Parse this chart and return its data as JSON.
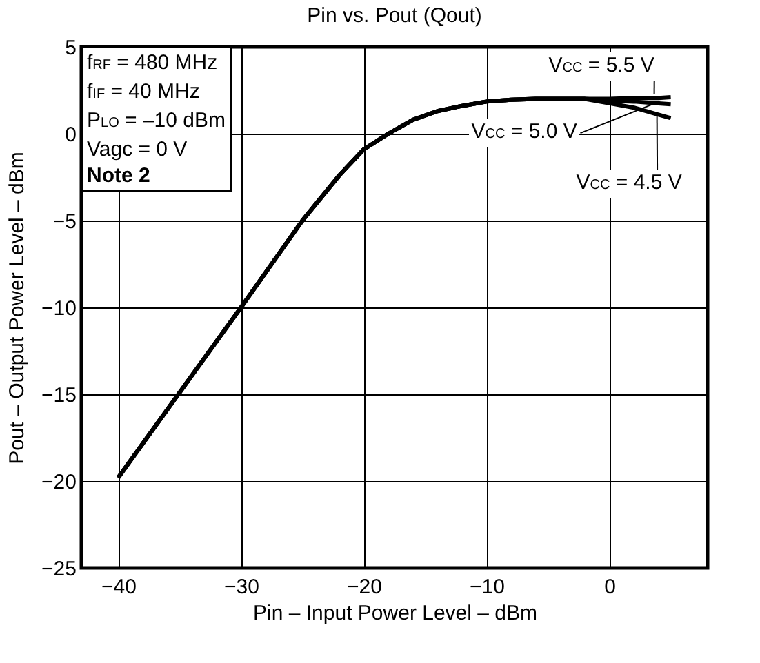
{
  "chart_data": {
    "type": "line",
    "title": "Pin vs. Pout (Qout)",
    "xlabel": "Pin – Input Power Level – dBm",
    "ylabel": "Pout – Output Power Level – dBm",
    "xlim": [
      -43,
      8
    ],
    "ylim": [
      -25,
      5
    ],
    "xticks": [
      -40,
      -30,
      -20,
      -10,
      0
    ],
    "yticks": [
      -25,
      -20,
      -15,
      -10,
      -5,
      0,
      5
    ],
    "grid": true,
    "legend": "top right",
    "annotations": [
      "f$_{RF}$ = 480 MHz",
      "f$_{IF}$ = 40 MHz",
      "P$_{LO}$ = –10 dBm",
      "Vagc = 0 V",
      "Note 2"
    ],
    "x": [
      -40,
      -35,
      -30,
      -25,
      -22,
      -20,
      -18,
      -16,
      -14,
      -12,
      -10,
      -8,
      -6,
      -4,
      -2,
      0,
      2,
      4,
      5
    ],
    "series": [
      {
        "name": "V$_{CC}$ = 5.5 V",
        "color": "#000000",
        "values": [
          -19.8,
          -14.9,
          -10,
          -5,
          -2.4,
          -0.9,
          0,
          0.8,
          1.3,
          1.6,
          1.85,
          1.95,
          2.0,
          2.0,
          2.0,
          2.0,
          2.05,
          2.05,
          2.1
        ]
      },
      {
        "name": "V$_{CC}$ = 5.0 V",
        "color": "#000000",
        "values": [
          -19.8,
          -14.9,
          -10,
          -5,
          -2.4,
          -0.9,
          0,
          0.8,
          1.3,
          1.6,
          1.85,
          1.95,
          2.0,
          2.0,
          2.0,
          1.9,
          1.85,
          1.75,
          1.7
        ]
      },
      {
        "name": "V$_{CC}$ = 4.5 V",
        "color": "#000000",
        "values": [
          -19.8,
          -14.9,
          -10,
          -5,
          -2.4,
          -0.9,
          0,
          0.8,
          1.3,
          1.6,
          1.85,
          1.95,
          2.0,
          2.0,
          2.0,
          1.75,
          1.5,
          1.1,
          0.9
        ]
      }
    ]
  }
}
